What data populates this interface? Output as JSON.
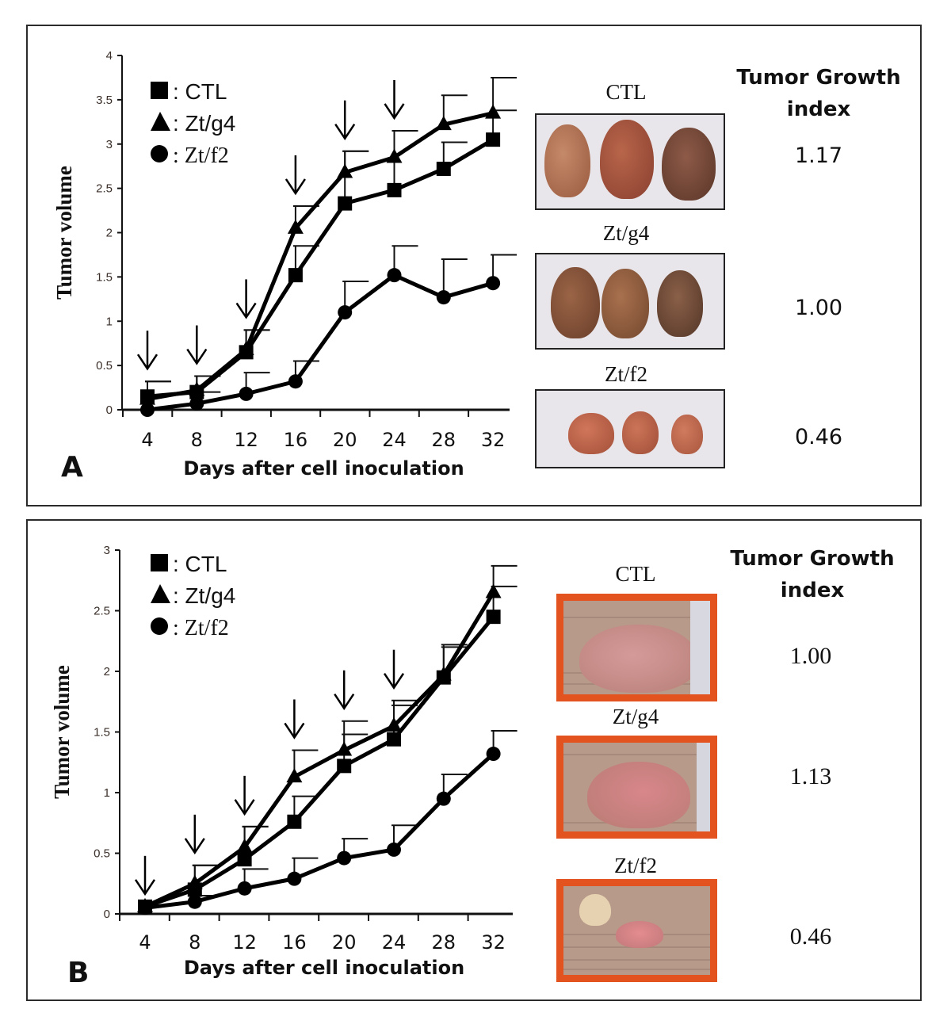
{
  "chart_data": [
    {
      "type": "line",
      "panel": "A",
      "title": "",
      "xlabel": "Days after cell inoculation",
      "ylabel": "Tumor volume",
      "x": [
        4,
        8,
        12,
        16,
        20,
        24,
        28,
        32
      ],
      "x_tick_labels": [
        "4",
        "8",
        "12",
        "16",
        "20",
        "24",
        "28",
        "32"
      ],
      "ylim": [
        0,
        4
      ],
      "y_ticks": [
        0,
        0.5,
        1,
        1.5,
        2,
        2.5,
        3,
        3.5,
        4
      ],
      "y_tick_labels": [
        "0",
        "0.5",
        "1",
        "1.5",
        "2",
        "2.5",
        "3",
        "3.5",
        "4"
      ],
      "grid": false,
      "legend_position": "top-left",
      "series": [
        {
          "name": "CTL",
          "marker": "square",
          "legend_label": ": CTL",
          "values": [
            0.15,
            0.2,
            0.65,
            1.52,
            2.33,
            2.48,
            2.72,
            3.05
          ],
          "error_upper": [
            0.32,
            0.38,
            0.9,
            1.85,
            2.92,
            3.15,
            3.02,
            3.38
          ]
        },
        {
          "name": "Zt/g4",
          "marker": "triangle",
          "legend_label": ": Zt/g4",
          "values": [
            0.12,
            0.22,
            0.68,
            2.05,
            2.68,
            2.85,
            3.22,
            3.35
          ],
          "error_upper": [
            0.32,
            0.38,
            0.9,
            2.3,
            2.92,
            3.15,
            3.55,
            3.75
          ]
        },
        {
          "name": "Zt/f2",
          "marker": "circle",
          "legend_label": ": Zt/f2",
          "values": [
            0.0,
            0.07,
            0.18,
            0.32,
            1.1,
            1.52,
            1.27,
            1.43
          ],
          "error_upper": [
            0.0,
            0.2,
            0.42,
            0.55,
            1.45,
            1.85,
            1.7,
            1.75
          ]
        }
      ],
      "arrows_at_days": [
        4,
        8,
        12,
        16,
        20,
        24
      ],
      "panel_label": "A"
    },
    {
      "type": "line",
      "panel": "B",
      "title": "",
      "xlabel": "Days after cell inoculation",
      "ylabel": "Tumor volume",
      "x": [
        4,
        8,
        12,
        16,
        20,
        24,
        28,
        32
      ],
      "x_tick_labels": [
        "4",
        "8",
        "12",
        "16",
        "20",
        "24",
        "28",
        "32"
      ],
      "ylim": [
        0,
        3
      ],
      "y_ticks": [
        0,
        0.5,
        1,
        1.5,
        2,
        2.5,
        3
      ],
      "y_tick_labels": [
        "0",
        "0.5",
        "1",
        "1.5",
        "2",
        "2.5",
        "3"
      ],
      "grid": false,
      "legend_position": "top-left",
      "series": [
        {
          "name": "CTL",
          "marker": "square",
          "legend_label": ": CTL",
          "values": [
            0.06,
            0.2,
            0.45,
            0.76,
            1.22,
            1.44,
            1.95,
            2.45
          ],
          "error_upper": [
            0.06,
            0.4,
            0.72,
            0.97,
            1.48,
            1.72,
            2.2,
            2.7
          ]
        },
        {
          "name": "Zt/g4",
          "marker": "triangle",
          "legend_label": ": Zt/g4",
          "values": [
            0.06,
            0.25,
            0.55,
            1.13,
            1.35,
            1.55,
            1.97,
            2.65
          ],
          "error_upper": [
            0.06,
            0.4,
            0.72,
            1.35,
            1.59,
            1.76,
            2.22,
            2.87
          ]
        },
        {
          "name": "Zt/f2",
          "marker": "circle",
          "legend_label": ": Zt/f2",
          "values": [
            0.05,
            0.1,
            0.21,
            0.29,
            0.46,
            0.53,
            0.95,
            1.32
          ],
          "error_upper": [
            0.05,
            0.15,
            0.37,
            0.46,
            0.62,
            0.73,
            1.15,
            1.51
          ]
        }
      ],
      "arrows_at_days": [
        4,
        8,
        12,
        16,
        20,
        24
      ],
      "panel_label": "B"
    }
  ],
  "panelA": {
    "photos": [
      {
        "label": "CTL",
        "index": "1.17"
      },
      {
        "label": "Zt/g4",
        "index": "1.00"
      },
      {
        "label": "Zt/f2",
        "index": "0.46"
      }
    ],
    "index_title_line1": "Tumor Growth",
    "index_title_line2": "index"
  },
  "panelB": {
    "photos": [
      {
        "label": "CTL",
        "index": "1.00"
      },
      {
        "label": "Zt/g4",
        "index": "1.13"
      },
      {
        "label": "Zt/f2",
        "index": "0.46"
      }
    ],
    "index_title_line1": "Tumor Growth",
    "index_title_line2": "index"
  },
  "colors": {
    "line": "#000000",
    "photo_frame_B": "#e2531f",
    "photo_frame_A": "#222222"
  }
}
